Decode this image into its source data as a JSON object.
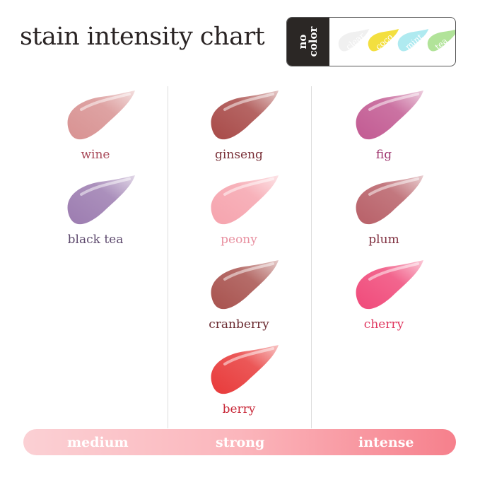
{
  "title": "stain intensity chart",
  "no_color": {
    "label_line1": "no",
    "label_line2": "color",
    "shades": [
      {
        "name": "clear",
        "color": "#eeeeee",
        "text_color": "#aaaaaa"
      },
      {
        "name": "coco",
        "color": "#f2dc2a",
        "text_color": "#ffffff"
      },
      {
        "name": "mint",
        "color": "#a6e8ee",
        "text_color": "#ffffff"
      },
      {
        "name": "tea",
        "color": "#a8e08e",
        "text_color": "#ffffff"
      }
    ]
  },
  "columns": [
    {
      "intensity": "medium",
      "shades": [
        {
          "name": "wine",
          "color": "#d89292",
          "label_color": "#a84858"
        },
        {
          "name": "black tea",
          "color": "#9c7cb0",
          "label_color": "#5e4a6e"
        }
      ]
    },
    {
      "intensity": "strong",
      "shades": [
        {
          "name": "ginseng",
          "color": "#a84a48",
          "label_color": "#7a3038"
        },
        {
          "name": "peony",
          "color": "#f6a4ae",
          "label_color": "#e890a0"
        },
        {
          "name": "cranberry",
          "color": "#a8524e",
          "label_color": "#6a2a30"
        },
        {
          "name": "berry",
          "color": "#e83a3a",
          "label_color": "#c82838"
        }
      ]
    },
    {
      "intensity": "intense",
      "shades": [
        {
          "name": "fig",
          "color": "#c25a92",
          "label_color": "#a03870"
        },
        {
          "name": "plum",
          "color": "#b86068",
          "label_color": "#803040"
        },
        {
          "name": "cherry",
          "color": "#f04a7a",
          "label_color": "#e03860"
        }
      ]
    }
  ],
  "scale_bar": {
    "labels": [
      "medium",
      "strong",
      "intense"
    ]
  }
}
